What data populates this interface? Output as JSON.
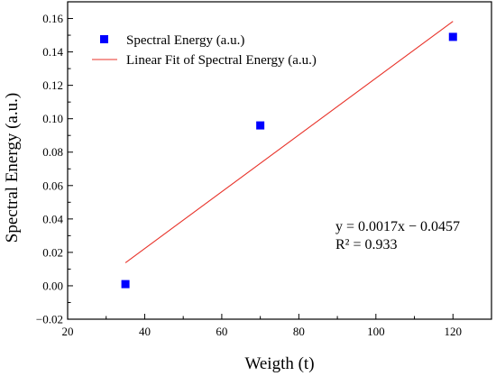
{
  "chart_data": {
    "type": "scatter",
    "xlabel": "Weigth (t)",
    "ylabel": "Spectral Energy (a.u.)",
    "xlim": [
      20,
      130
    ],
    "ylim": [
      -0.02,
      0.17
    ],
    "xticks": [
      20,
      40,
      60,
      80,
      100,
      120
    ],
    "yticks": [
      -0.02,
      0.0,
      0.02,
      0.04,
      0.06,
      0.08,
      0.1,
      0.12,
      0.14,
      0.16
    ],
    "ytick_labels": [
      "−0.02",
      "0.00",
      "0.02",
      "0.04",
      "0.06",
      "0.08",
      "0.10",
      "0.12",
      "0.14",
      "0.16"
    ],
    "grid": false,
    "legend_position": "top-left",
    "series": [
      {
        "name": "Spectral Energy (a.u.)",
        "kind": "scatter",
        "marker": "square",
        "color": "#0000ff",
        "x": [
          35,
          70,
          120
        ],
        "y": [
          0.001,
          0.096,
          0.149
        ]
      },
      {
        "name": "Linear Fit of Spectral Energy (a.u.)",
        "kind": "line",
        "color": "#e8332a",
        "x": [
          35,
          120
        ],
        "y": [
          0.0138,
          0.1583
        ]
      }
    ],
    "annotations": [
      "y = 0.0017x − 0.0457",
      "R² = 0.933"
    ]
  }
}
